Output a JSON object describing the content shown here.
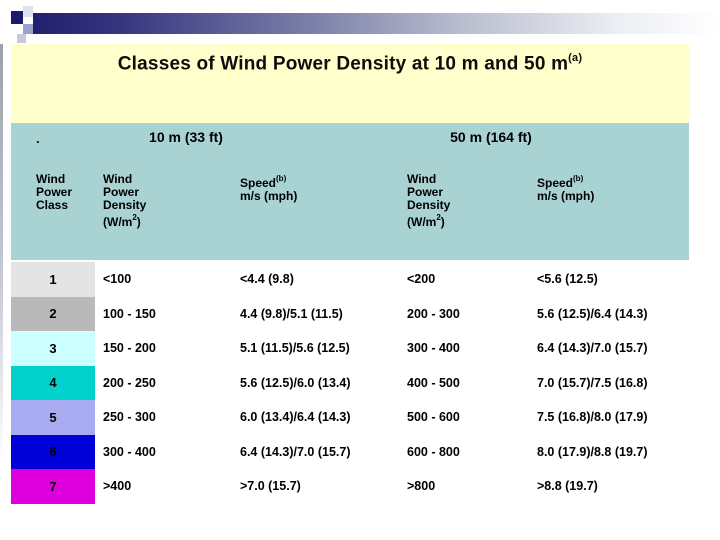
{
  "title": {
    "text": "Classes of Wind Power Density at 10 m and 50 m",
    "sup": "(a)"
  },
  "colors": {
    "title_bg": "#ffffcb",
    "header_bg": "#a9d2d2",
    "bar_navy": "#20206f"
  },
  "table": {
    "bullet": ".",
    "groups": {
      "h10": "10 m (33 ft)",
      "h50": "50 m (164 ft)"
    },
    "headers": {
      "class": {
        "l1": "Wind",
        "l2": "Power",
        "l3": "Class"
      },
      "density": {
        "l1": "Wind",
        "l2": "Power",
        "l3": "Density",
        "l4pre": "(W/m",
        "l4sup": "2",
        "l4post": ")"
      },
      "speed": {
        "l1pre": "Speed",
        "l1sup": "(b)",
        "l2": "m/s (mph)"
      }
    },
    "rows": [
      {
        "class": "1",
        "color": "#e4e4e4",
        "d10": "<100",
        "s10": "<4.4 (9.8)",
        "d50": "<200",
        "s50": "<5.6 (12.5)"
      },
      {
        "class": "2",
        "color": "#b9b9b9",
        "d10": "100 - 150",
        "s10": "4.4 (9.8)/5.1 (11.5)",
        "d50": "200 - 300",
        "s50": "5.6 (12.5)/6.4 (14.3)"
      },
      {
        "class": "3",
        "color": "#ccffff",
        "d10": "150 - 200",
        "s10": "5.1 (11.5)/5.6 (12.5)",
        "d50": "300 - 400",
        "s50": "6.4 (14.3)/7.0 (15.7)"
      },
      {
        "class": "4",
        "color": "#00d2cb",
        "d10": "200 - 250",
        "s10": "5.6 (12.5)/6.0 (13.4)",
        "d50": "400 - 500",
        "s50": "7.0 (15.7)/7.5 (16.8)"
      },
      {
        "class": "5",
        "color": "#a8abf0",
        "d10": "250 - 300",
        "s10": "6.0 (13.4)/6.4 (14.3)",
        "d50": "500 - 600",
        "s50": "7.5 (16.8)/8.0 (17.9)"
      },
      {
        "class": "6",
        "color": "#0000d8",
        "d10": "300 - 400",
        "s10": "6.4 (14.3)/7.0 (15.7)",
        "d50": "600 - 800",
        "s50": "8.0 (17.9)/8.8 (19.7)"
      },
      {
        "class": "7",
        "color": "#dd00dd",
        "d10": ">400",
        "s10": ">7.0 (15.7)",
        "d50": ">800",
        "s50": ">8.8 (19.7)"
      }
    ]
  }
}
